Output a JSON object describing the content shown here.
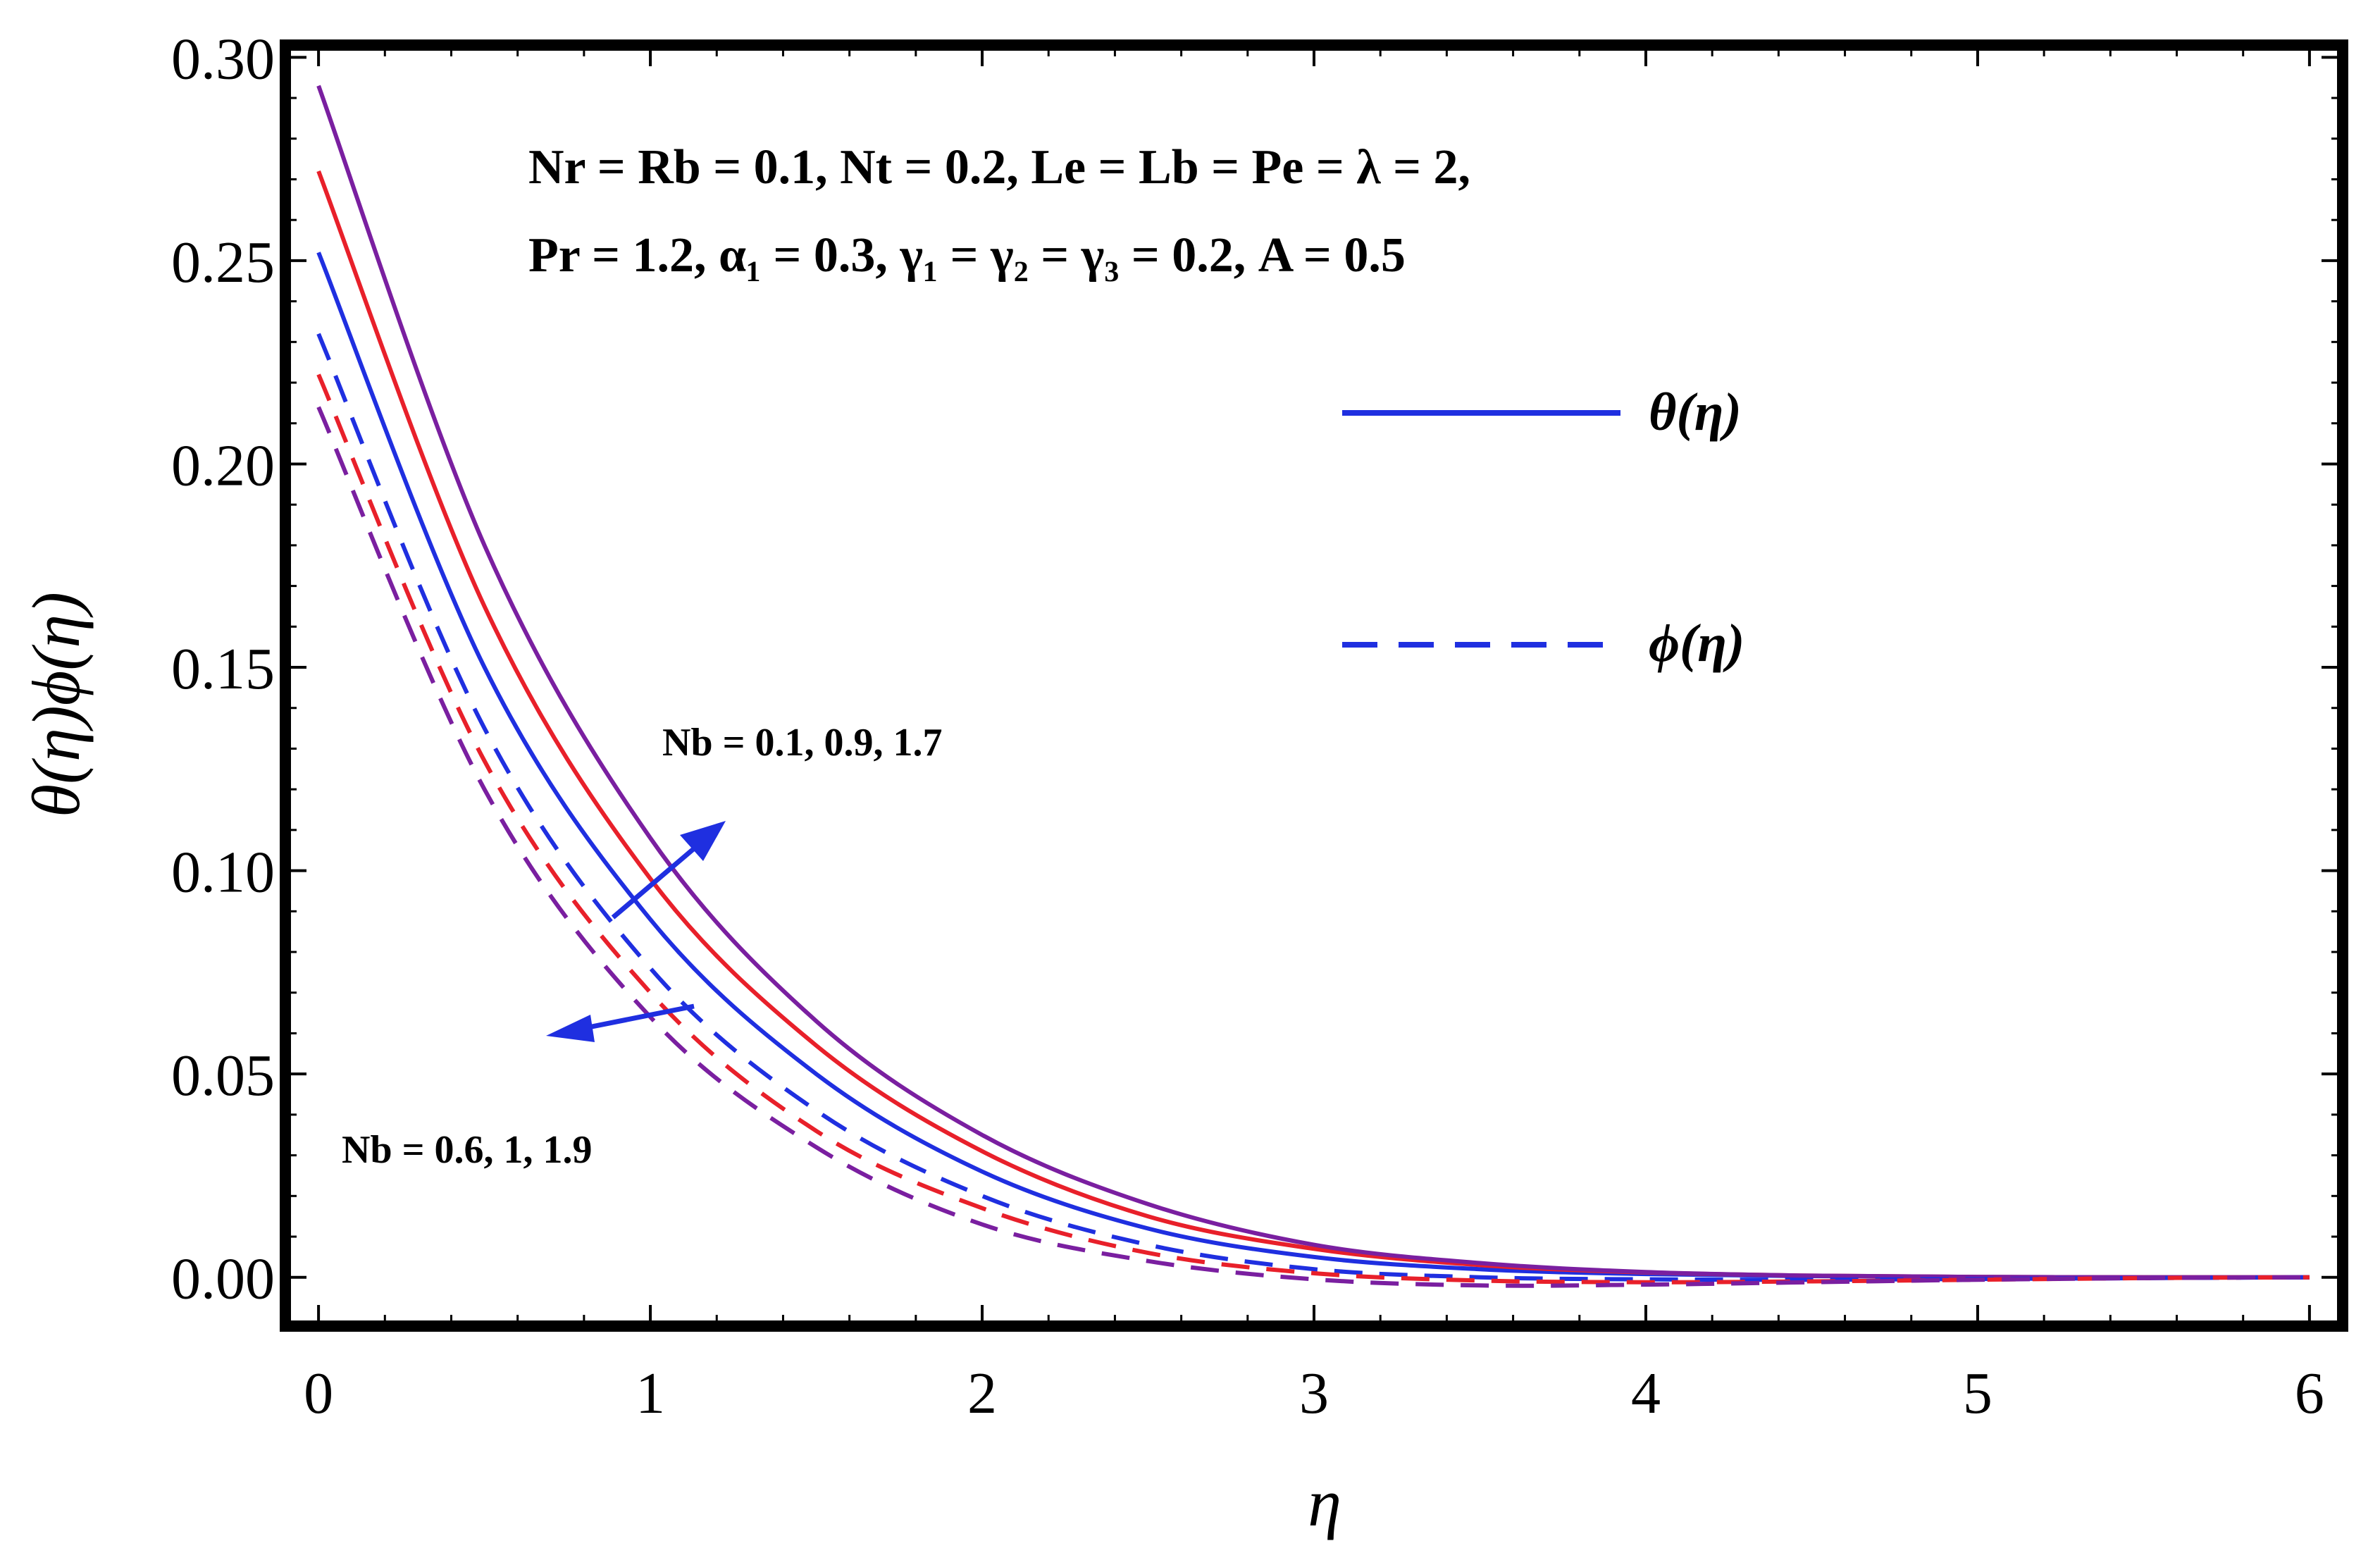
{
  "chart_data": {
    "type": "line",
    "xlabel": "η",
    "ylabel": "θ(η)ϕ(η)",
    "xlim": [
      -0.1,
      6.1
    ],
    "ylim": [
      -0.012,
      0.303
    ],
    "xticks": [
      0,
      1,
      2,
      3,
      4,
      5,
      6
    ],
    "xtick_labels": [
      "0",
      "1",
      "2",
      "3",
      "4",
      "5",
      "6"
    ],
    "yticks": [
      0.0,
      0.05,
      0.1,
      0.15,
      0.2,
      0.25,
      0.3
    ],
    "ytick_labels": [
      "0.00",
      "0.05",
      "0.10",
      "0.15",
      "0.20",
      "0.25",
      "0.30"
    ],
    "series": [
      {
        "name": "θ(η), Nb = 0.1",
        "style": "solid",
        "color": "#1f2fe0",
        "x": [
          0,
          0.5,
          1,
          1.5,
          2,
          2.5,
          3,
          3.5,
          4,
          4.5,
          5,
          5.5,
          6
        ],
        "values": [
          0.252,
          0.15,
          0.088,
          0.05,
          0.026,
          0.012,
          0.005,
          0.002,
          0.0008,
          0.0003,
          0.0001,
          0.0,
          0.0
        ]
      },
      {
        "name": "θ(η), Nb = 0.9",
        "style": "solid",
        "color": "#e8202a",
        "x": [
          0,
          0.5,
          1,
          1.5,
          2,
          2.5,
          3,
          3.5,
          4,
          4.5,
          5,
          5.5,
          6
        ],
        "values": [
          0.272,
          0.165,
          0.098,
          0.057,
          0.031,
          0.015,
          0.007,
          0.003,
          0.0012,
          0.0004,
          0.0001,
          0.0,
          0.0
        ]
      },
      {
        "name": "θ(η), Nb = 1.7",
        "style": "solid",
        "color": "#7a1fa0",
        "x": [
          0,
          0.5,
          1,
          1.5,
          2,
          2.5,
          3,
          3.5,
          4,
          4.5,
          5,
          5.5,
          6
        ],
        "values": [
          0.293,
          0.18,
          0.108,
          0.063,
          0.035,
          0.018,
          0.008,
          0.0035,
          0.0013,
          0.0004,
          0.0001,
          0.0,
          0.0
        ]
      },
      {
        "name": "ϕ(η), Nb = 0.6",
        "style": "dashed",
        "color": "#1f2fe0",
        "x": [
          0,
          0.5,
          1,
          1.5,
          2,
          2.5,
          3,
          3.5,
          4,
          4.5,
          5,
          5.5,
          6
        ],
        "values": [
          0.232,
          0.135,
          0.076,
          0.041,
          0.02,
          0.008,
          0.002,
          0.0,
          -0.0005,
          -0.0006,
          -0.0004,
          -0.0002,
          0.0
        ]
      },
      {
        "name": "ϕ(η), Nb = 1",
        "style": "dashed",
        "color": "#e8202a",
        "x": [
          0,
          0.5,
          1,
          1.5,
          2,
          2.5,
          3,
          3.5,
          4,
          4.5,
          5,
          5.5,
          6
        ],
        "values": [
          0.222,
          0.127,
          0.07,
          0.036,
          0.017,
          0.006,
          0.001,
          -0.0008,
          -0.0012,
          -0.001,
          -0.0006,
          -0.0002,
          0.0
        ]
      },
      {
        "name": "ϕ(η), Nb = 1.9",
        "style": "dashed",
        "color": "#7a1fa0",
        "x": [
          0,
          0.5,
          1,
          1.5,
          2,
          2.5,
          3,
          3.5,
          4,
          4.5,
          5,
          5.5,
          6
        ],
        "values": [
          0.214,
          0.12,
          0.064,
          0.032,
          0.013,
          0.004,
          -0.0005,
          -0.002,
          -0.0018,
          -0.0012,
          -0.0006,
          -0.0002,
          0.0
        ]
      }
    ],
    "legend": [
      {
        "label": "θ(η)",
        "style": "solid",
        "color": "#1f2fe0"
      },
      {
        "label": "ϕ(η)",
        "style": "dashed",
        "color": "#1f2fe0"
      }
    ],
    "legend_position": "center-right",
    "parameters_line1": "Nr = Rb = 0.1, Nt = 0.2, Le = Lb = Pe = λ = 2,",
    "parameters_line2": "Pr = 1.2, α₁  = 0.3,  γ₁  = γ₂  = γ₃  = 0.2,  A = 0.5",
    "annotation_theta": "Nb = 0.1, 0.9, 1.7",
    "annotation_phi": "Nb = 0.6, 1, 1.9",
    "arrow_color": "#1f2fe0"
  }
}
